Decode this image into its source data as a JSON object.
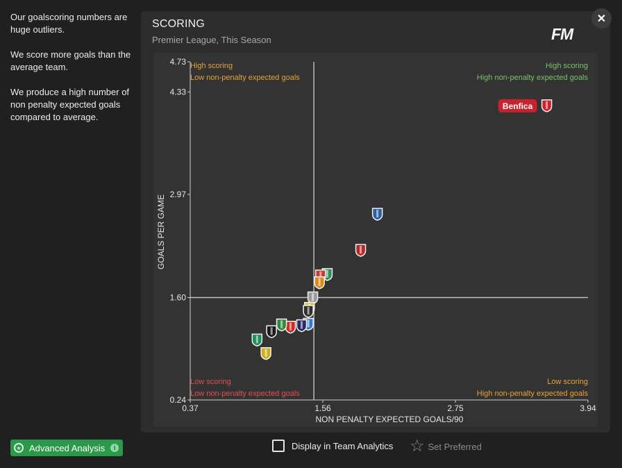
{
  "sidebar": {
    "insights": [
      "Our goalscoring numbers are huge outliers.",
      "We score more goals than the average team.",
      "We produce a high number of non penalty expected goals compared to average."
    ]
  },
  "panel": {
    "title": "SCORING",
    "subtitle": "Premier League, This Season",
    "logo": "FM",
    "close_icon": "close-icon"
  },
  "quadrants": {
    "top_left": [
      "High scoring",
      "Low non-penalty expected goals"
    ],
    "top_right": [
      "High scoring",
      "High non-penalty expected goals"
    ],
    "bottom_left": [
      "Low scoring",
      "Low non-penalty expected goals"
    ],
    "bottom_right": [
      "Low scoring",
      "High non-penalty expected goals"
    ]
  },
  "colors": {
    "orange": "#e8a23a",
    "green": "#7cc26a",
    "red": "#e05050",
    "highlight": "#c8222c",
    "accent": "#2a9a4a"
  },
  "chart_data": {
    "type": "scatter",
    "title": "SCORING",
    "subtitle": "Premier League, This Season",
    "xlabel": "NON PENALTY EXPECTED GOALS/90",
    "ylabel": "GOALS PER GAME",
    "xlim": [
      0.37,
      3.94
    ],
    "ylim": [
      0.24,
      4.73
    ],
    "x_ticks": [
      "0.37",
      "1.56",
      "2.75",
      "3.94"
    ],
    "x_tick_values": [
      0.37,
      1.56,
      2.75,
      3.94
    ],
    "y_ticks": [
      "4.73",
      "4.33",
      "2.97",
      "1.60",
      "0.24"
    ],
    "y_tick_values": [
      4.73,
      4.33,
      2.97,
      1.6,
      0.24
    ],
    "average_x": 1.48,
    "average_y": 1.6,
    "highlight_label": "Benfica",
    "points": [
      {
        "x": 3.57,
        "y": 4.15,
        "color": "#c8222c",
        "highlight": true
      },
      {
        "x": 2.05,
        "y": 2.71,
        "color": "#2b5fa8"
      },
      {
        "x": 1.9,
        "y": 2.23,
        "color": "#b02a2a"
      },
      {
        "x": 1.6,
        "y": 1.91,
        "color": "#2e8b57"
      },
      {
        "x": 1.54,
        "y": 1.89,
        "color": "#c23a3a"
      },
      {
        "x": 1.53,
        "y": 1.8,
        "color": "#d98a1e"
      },
      {
        "x": 1.47,
        "y": 1.6,
        "color": "#9a9a9a"
      },
      {
        "x": 1.44,
        "y": 1.46,
        "color": "#d8c23a"
      },
      {
        "x": 1.43,
        "y": 1.42,
        "color": "#2f2f2f"
      },
      {
        "x": 1.43,
        "y": 1.25,
        "color": "#3a78c8"
      },
      {
        "x": 1.37,
        "y": 1.23,
        "color": "#2a2a6a"
      },
      {
        "x": 1.27,
        "y": 1.21,
        "color": "#cf2a2a"
      },
      {
        "x": 1.19,
        "y": 1.24,
        "color": "#2e8b3c"
      },
      {
        "x": 1.1,
        "y": 1.15,
        "color": "#1a1a1a"
      },
      {
        "x": 0.97,
        "y": 1.04,
        "color": "#1f8f5a"
      },
      {
        "x": 1.05,
        "y": 0.86,
        "color": "#c9b020"
      }
    ]
  },
  "footer": {
    "advanced_label": "Advanced Analysis",
    "info_icon": "info-icon",
    "display_label": "Display in Team Analytics",
    "set_preferred_label": "Set Preferred",
    "star_icon": "star-icon"
  }
}
